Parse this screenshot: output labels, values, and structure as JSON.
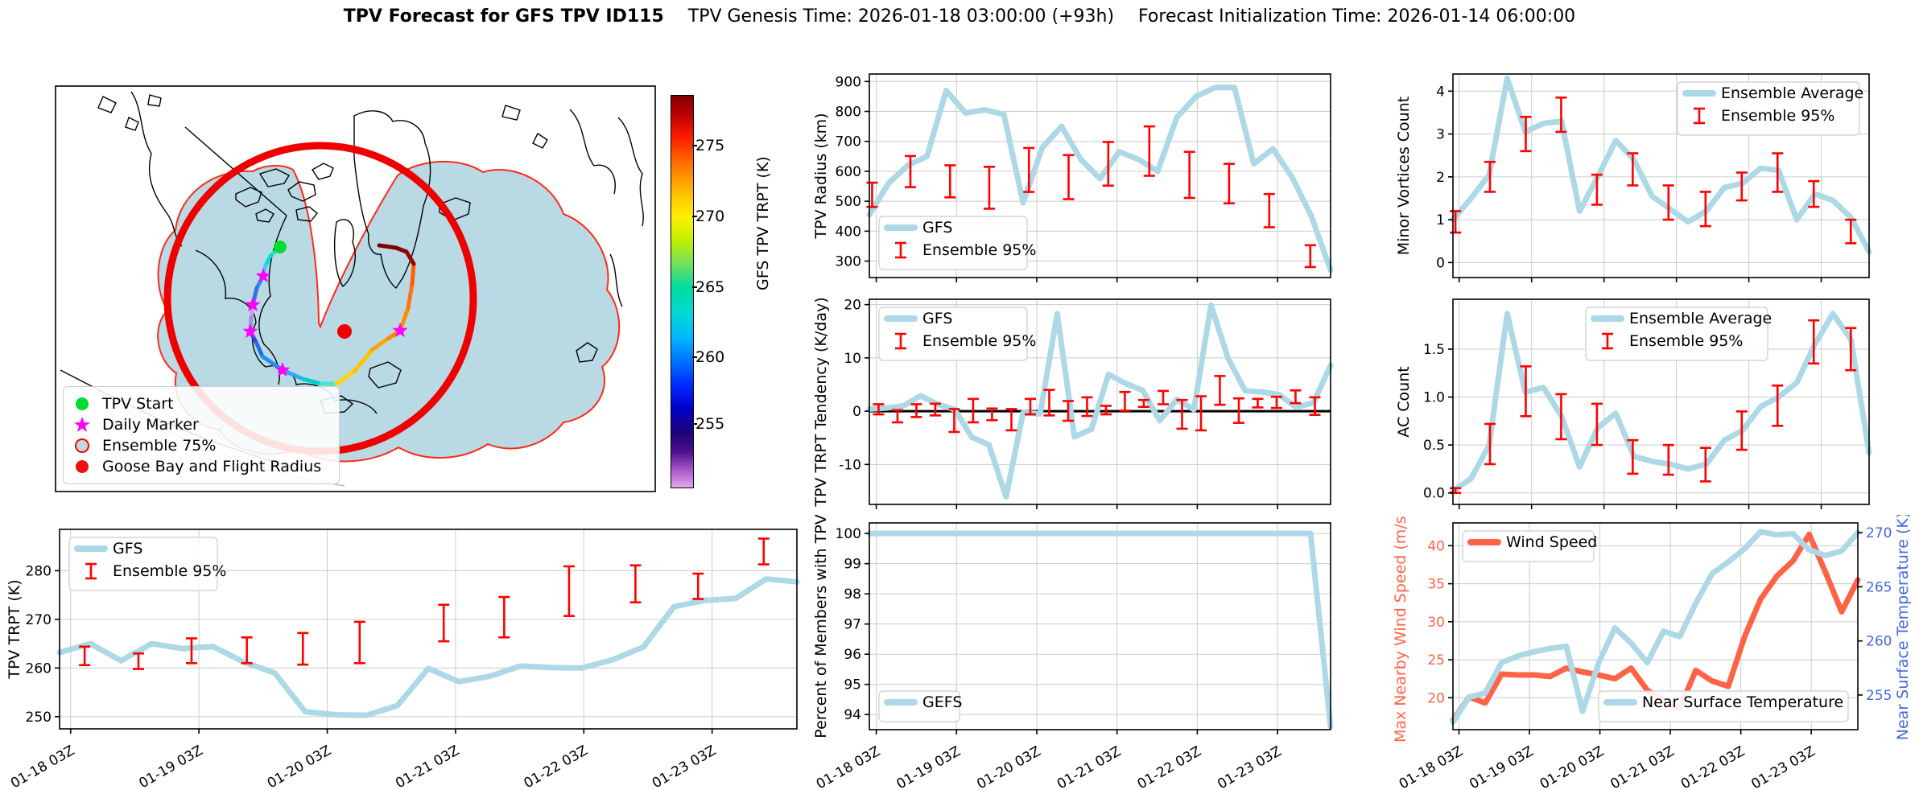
{
  "title": {
    "bold": "TPV Forecast for GFS TPV ID115",
    "genesis": "TPV Genesis Time: 2026-01-18 03:00:00 (+93h)",
    "init": "Forecast Initialization Time: 2026-01-14 06:00:00"
  },
  "map": {
    "legend": [
      {
        "label": "TPV Start",
        "marker": "circle",
        "color": "#00e018"
      },
      {
        "label": "Daily Marker",
        "marker": "star",
        "color": "#ff00ff"
      },
      {
        "label": "Ensemble 75%",
        "marker": "ring",
        "color": "#b9dae4",
        "edge": "#ff0000"
      },
      {
        "label": "Goose Bay and Flight Radius",
        "marker": "circle",
        "color": "#ee1111"
      }
    ],
    "colorbar": {
      "label": "GFS TPV TRPT (K)",
      "ticks": [
        275,
        270,
        265,
        260,
        255
      ],
      "tick_pos": [
        13,
        31,
        49,
        67,
        84
      ]
    },
    "colors": {
      "ensemble_fill": "#b9dae4",
      "ensemble_edge": "#ff2a1a",
      "flight_circle": "#ee0000"
    }
  },
  "xticklabels": [
    "01-18 03Z",
    "01-19 03Z",
    "01-20 03Z",
    "01-21 03Z",
    "01-22 03Z",
    "01-23 03Z"
  ],
  "chart_data": [
    {
      "id": "trpt",
      "type": "line",
      "ylabel": "TPV TRPT (K)",
      "ylim": [
        247.5,
        288.5
      ],
      "yticks": [
        250,
        260,
        270,
        280
      ],
      "show_xlabels": true,
      "series": [
        {
          "name": "GFS",
          "color": "#add8e6",
          "width": 7,
          "values": [
            263.2,
            265.0,
            261.5,
            265.0,
            264.0,
            264.4,
            261.2,
            259.0,
            251.0,
            250.4,
            250.3,
            252.3,
            259.9,
            257.2,
            258.3,
            260.4,
            260.1,
            260.0,
            261.7,
            264.3,
            272.6,
            273.9,
            274.3,
            278.3,
            277.7
          ]
        }
      ],
      "errorbars": {
        "name": "Ensemble 95%",
        "color": "#ff0000",
        "x": [
          0.034,
          0.107,
          0.179,
          0.254,
          0.33,
          0.407,
          0.521,
          0.603,
          0.691,
          0.781,
          0.866,
          0.955
        ],
        "ranges": [
          [
            260.6,
            264.4
          ],
          [
            259.8,
            263.0
          ],
          [
            261.0,
            266.1
          ],
          [
            261.0,
            266.3
          ],
          [
            260.7,
            267.2
          ],
          [
            261.0,
            269.5
          ],
          [
            265.5,
            273.0
          ],
          [
            266.3,
            274.6
          ],
          [
            270.7,
            280.9
          ],
          [
            273.5,
            281.1
          ],
          [
            274.2,
            279.4
          ],
          [
            281.3,
            286.6
          ]
        ]
      },
      "legends": [
        {
          "pos": "tl",
          "items": [
            {
              "label": "GFS",
              "glyph": "line",
              "color": "#add8e6"
            },
            {
              "label": "Ensemble 95%",
              "glyph": "errbar",
              "color": "#ff0000"
            }
          ]
        }
      ]
    },
    {
      "id": "radius",
      "type": "line",
      "ylabel": "TPV Radius (km)",
      "ylim": [
        245,
        925
      ],
      "yticks": [
        300,
        400,
        500,
        600,
        700,
        800,
        900
      ],
      "show_xlabels": false,
      "series": [
        {
          "name": "GFS",
          "color": "#add8e6",
          "width": 7,
          "values": [
            455,
            560,
            620,
            650,
            870,
            795,
            805,
            790,
            495,
            680,
            750,
            640,
            575,
            665,
            640,
            600,
            780,
            850,
            880,
            880,
            625,
            675,
            580,
            450,
            270
          ]
        }
      ],
      "errorbars": {
        "name": "Ensemble 95%",
        "color": "#ff0000",
        "x": [
          0.006,
          0.089,
          0.175,
          0.26,
          0.346,
          0.432,
          0.518,
          0.607,
          0.694,
          0.78,
          0.867,
          0.956
        ],
        "ranges": [
          [
            481,
            562
          ],
          [
            547,
            651
          ],
          [
            513,
            620
          ],
          [
            475,
            615
          ],
          [
            531,
            678
          ],
          [
            507,
            654
          ],
          [
            552,
            698
          ],
          [
            585,
            750
          ],
          [
            511,
            665
          ],
          [
            493,
            625
          ],
          [
            413,
            524
          ],
          [
            280,
            353
          ]
        ]
      },
      "legends": [
        {
          "pos": "bl",
          "items": [
            {
              "label": "GFS",
              "glyph": "line",
              "color": "#add8e6"
            },
            {
              "label": "Ensemble 95%",
              "glyph": "errbar",
              "color": "#ff0000"
            }
          ]
        }
      ]
    },
    {
      "id": "tendency",
      "type": "line",
      "ylabel": "TPV TRPT Tendency (K/day)",
      "ylim": [
        -17.5,
        21
      ],
      "yticks": [
        -10,
        0,
        10,
        20
      ],
      "zero_line": true,
      "show_xlabels": false,
      "series": [
        {
          "name": "GFS",
          "color": "#add8e6",
          "width": 7,
          "values": [
            0.4,
            0.6,
            1.0,
            2.9,
            1.3,
            0.3,
            -4.9,
            -6.3,
            -16.1,
            -0.3,
            -0.5,
            18.3,
            -4.8,
            -3.4,
            6.9,
            5.2,
            3.9,
            -1.8,
            2.2,
            0.3,
            19.9,
            9.9,
            3.8,
            3.6,
            3.1,
            0.7,
            1.6,
            8.6
          ]
        }
      ],
      "errorbars": {
        "name": "Ensemble 95%",
        "color": "#ff0000",
        "x": [
          0.02,
          0.061,
          0.102,
          0.143,
          0.184,
          0.225,
          0.266,
          0.308,
          0.349,
          0.39,
          0.431,
          0.472,
          0.513,
          0.554,
          0.595,
          0.637,
          0.678,
          0.719,
          0.76,
          0.801,
          0.842,
          0.883,
          0.924,
          0.966
        ],
        "ranges": [
          [
            -0.6,
            1.3
          ],
          [
            -2.1,
            0.2
          ],
          [
            -1.1,
            1.3
          ],
          [
            -0.8,
            1.4
          ],
          [
            -3.9,
            0.4
          ],
          [
            -2.1,
            2.3
          ],
          [
            -1.7,
            0.5
          ],
          [
            -3.6,
            0.4
          ],
          [
            -0.6,
            2.3
          ],
          [
            -0.8,
            4.0
          ],
          [
            -1.8,
            1.9
          ],
          [
            -0.9,
            2.6
          ],
          [
            -0.6,
            1.0
          ],
          [
            0.1,
            3.6
          ],
          [
            0.8,
            2.1
          ],
          [
            1.3,
            3.8
          ],
          [
            -3.3,
            2.1
          ],
          [
            -3.6,
            2.8
          ],
          [
            1.2,
            6.6
          ],
          [
            -2.2,
            2.4
          ],
          [
            0.7,
            2.3
          ],
          [
            0.6,
            2.7
          ],
          [
            1.5,
            3.9
          ],
          [
            -0.7,
            2.6
          ]
        ]
      },
      "legends": [
        {
          "pos": "tl",
          "items": [
            {
              "label": "GFS",
              "glyph": "line",
              "color": "#add8e6"
            },
            {
              "label": "Ensemble 95%",
              "glyph": "errbar",
              "color": "#ff0000"
            }
          ]
        }
      ]
    },
    {
      "id": "percent",
      "type": "line",
      "ylabel": "Percent of Members with TPV",
      "ylim": [
        93.5,
        100.35
      ],
      "yticks": [
        94,
        95,
        96,
        97,
        98,
        99,
        100
      ],
      "show_xlabels": true,
      "series": [
        {
          "name": "GEFS",
          "color": "#add8e6",
          "width": 7,
          "values": [
            100,
            100,
            100,
            100,
            100,
            100,
            100,
            100,
            100,
            100,
            100,
            100,
            100,
            100,
            100,
            100,
            100,
            100,
            100,
            100,
            100,
            100,
            100,
            93.6
          ]
        }
      ],
      "legends": [
        {
          "pos": "bl",
          "items": [
            {
              "label": "GEFS",
              "glyph": "line",
              "color": "#add8e6"
            }
          ]
        }
      ]
    },
    {
      "id": "minor",
      "type": "line",
      "ylabel": "Minor Vortices Count",
      "ylim": [
        -0.35,
        4.4
      ],
      "yticks": [
        0,
        1,
        2,
        3,
        4
      ],
      "show_xlabels": false,
      "series": [
        {
          "name": "Ensemble Average",
          "color": "#add8e6",
          "width": 7,
          "values": [
            1.0,
            1.5,
            2.05,
            4.3,
            3.05,
            3.25,
            3.3,
            1.2,
            2.0,
            2.85,
            2.4,
            1.55,
            1.25,
            0.95,
            1.2,
            1.75,
            1.85,
            2.2,
            2.15,
            1.0,
            1.6,
            1.45,
            1.05,
            0.25
          ]
        }
      ],
      "errorbars": {
        "name": "Ensemble 95%",
        "color": "#ff0000",
        "x": [
          0.006,
          0.089,
          0.175,
          0.26,
          0.346,
          0.432,
          0.518,
          0.607,
          0.694,
          0.78,
          0.867,
          0.956
        ],
        "ranges": [
          [
            0.7,
            1.2
          ],
          [
            1.65,
            2.35
          ],
          [
            2.6,
            3.4
          ],
          [
            3.05,
            3.85
          ],
          [
            1.35,
            2.05
          ],
          [
            1.8,
            2.55
          ],
          [
            1.0,
            1.8
          ],
          [
            0.85,
            1.65
          ],
          [
            1.45,
            2.1
          ],
          [
            1.65,
            2.55
          ],
          [
            1.3,
            1.9
          ],
          [
            0.45,
            1.0
          ]
        ]
      },
      "legends": [
        {
          "pos": "tr",
          "items": [
            {
              "label": "Ensemble Average",
              "glyph": "line",
              "color": "#add8e6"
            },
            {
              "label": "Ensemble 95%",
              "glyph": "errbar",
              "color": "#ff0000"
            }
          ]
        }
      ]
    },
    {
      "id": "ac",
      "type": "line",
      "ylabel": "AC Count",
      "ylim": [
        -0.12,
        2.02
      ],
      "yticks": [
        0.0,
        0.5,
        1.0,
        1.5
      ],
      "ytick_decimals": 1,
      "show_xlabels": false,
      "series": [
        {
          "name": "Ensemble Average",
          "color": "#add8e6",
          "width": 7,
          "values": [
            0.02,
            0.15,
            0.5,
            1.87,
            1.05,
            1.1,
            0.8,
            0.27,
            0.68,
            0.83,
            0.38,
            0.33,
            0.3,
            0.25,
            0.3,
            0.55,
            0.65,
            0.9,
            1.0,
            1.15,
            1.55,
            1.87,
            1.6,
            0.42
          ]
        }
      ],
      "errorbars": {
        "name": "Ensemble 95%",
        "color": "#ff0000",
        "x": [
          0.006,
          0.089,
          0.175,
          0.26,
          0.346,
          0.432,
          0.518,
          0.607,
          0.694,
          0.78,
          0.867,
          0.956
        ],
        "ranges": [
          [
            0.0,
            0.05
          ],
          [
            0.3,
            0.72
          ],
          [
            0.8,
            1.32
          ],
          [
            0.56,
            1.03
          ],
          [
            0.5,
            0.93
          ],
          [
            0.2,
            0.55
          ],
          [
            0.19,
            0.5
          ],
          [
            0.12,
            0.47
          ],
          [
            0.45,
            0.85
          ],
          [
            0.7,
            1.12
          ],
          [
            1.35,
            1.8
          ],
          [
            1.28,
            1.72
          ]
        ]
      },
      "legends": [
        {
          "pos": "tc",
          "items": [
            {
              "label": "Ensemble Average",
              "glyph": "line",
              "color": "#add8e6"
            },
            {
              "label": "Ensemble 95%",
              "glyph": "errbar",
              "color": "#ff0000"
            }
          ]
        }
      ]
    },
    {
      "id": "wind",
      "type": "line",
      "ylabel": "Max Nearby Wind Speed (m/s)",
      "ylabel_color": "#ff6347",
      "ylim": [
        15.8,
        43
      ],
      "yticks": [
        20,
        25,
        30,
        35,
        40
      ],
      "ytick_color": "#ff6347",
      "ylabel_right": "Near Surface Temperature (K)",
      "ylabel_right_color": "#4169e1",
      "ylim_right": [
        251.8,
        270.9
      ],
      "yticks_right": [
        255,
        260,
        265,
        270
      ],
      "show_xlabels": true,
      "series": [
        {
          "name": "Wind Speed",
          "color": "#ff6347",
          "width": 7,
          "values": [
            17.0,
            20.1,
            19.3,
            23.1,
            23.0,
            23.0,
            22.8,
            23.9,
            23.4,
            23.0,
            22.5,
            23.9,
            21.0,
            19.6,
            18.6,
            23.6,
            22.2,
            21.5,
            28.0,
            33.0,
            36.0,
            38.0,
            41.5,
            36.5,
            31.3,
            35.5
          ]
        },
        {
          "name": "Near Surface Temperature",
          "color": "#add8e6",
          "width": 7,
          "axis": "right",
          "values": [
            252.5,
            254.8,
            255.2,
            258.0,
            258.6,
            259.0,
            259.3,
            259.5,
            253.5,
            258.0,
            261.2,
            259.8,
            258.0,
            260.9,
            260.4,
            263.5,
            266.2,
            267.3,
            268.5,
            270.1,
            269.8,
            269.9,
            268.4,
            267.9,
            268.3,
            270.0
          ]
        }
      ],
      "legends": [
        {
          "pos": "tl",
          "items": [
            {
              "label": "Wind Speed",
              "glyph": "line",
              "color": "#ff6347"
            }
          ]
        },
        {
          "pos": "br",
          "items": [
            {
              "label": "Near Surface Temperature",
              "glyph": "line",
              "color": "#add8e6"
            }
          ]
        }
      ]
    }
  ]
}
